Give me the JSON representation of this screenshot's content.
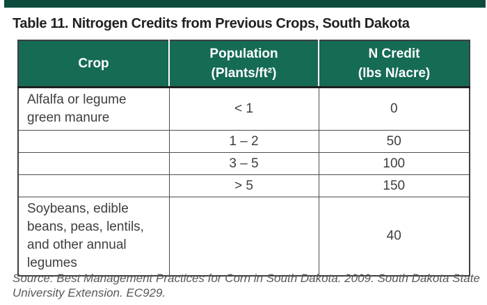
{
  "title": "Table 11. Nitrogen Credits from Previous Crops, South Dakota",
  "table": {
    "headers": [
      {
        "line1": "Crop",
        "line2": ""
      },
      {
        "line1": "Population",
        "line2": "(Plants/ft²)"
      },
      {
        "line1": "N Credit",
        "line2": "(lbs N/acre)"
      }
    ],
    "rows": [
      {
        "crop": "Alfalfa or legume green manure",
        "population": "< 1",
        "n_credit": "0"
      },
      {
        "crop": "",
        "population": "1 – 2",
        "n_credit": "50"
      },
      {
        "crop": "",
        "population": "3 – 5",
        "n_credit": "100"
      },
      {
        "crop": "",
        "population": "> 5",
        "n_credit": "150"
      },
      {
        "crop": "Soybeans, edible beans, peas, lentils, and other annual legumes",
        "population": "",
        "n_credit": "40"
      }
    ]
  },
  "source": {
    "line1": "Source: Best Management Practices for Corn in South Dakota. 2009. South Dakota State",
    "line2": "University Extension. EC929."
  },
  "colors": {
    "top_bar": "#0D4B3D",
    "header_bg": "#156B54",
    "title_text": "#231F20",
    "body_text": "#3E3E40",
    "grid_line": "#4D4D4F",
    "source_text": "#57585A"
  }
}
